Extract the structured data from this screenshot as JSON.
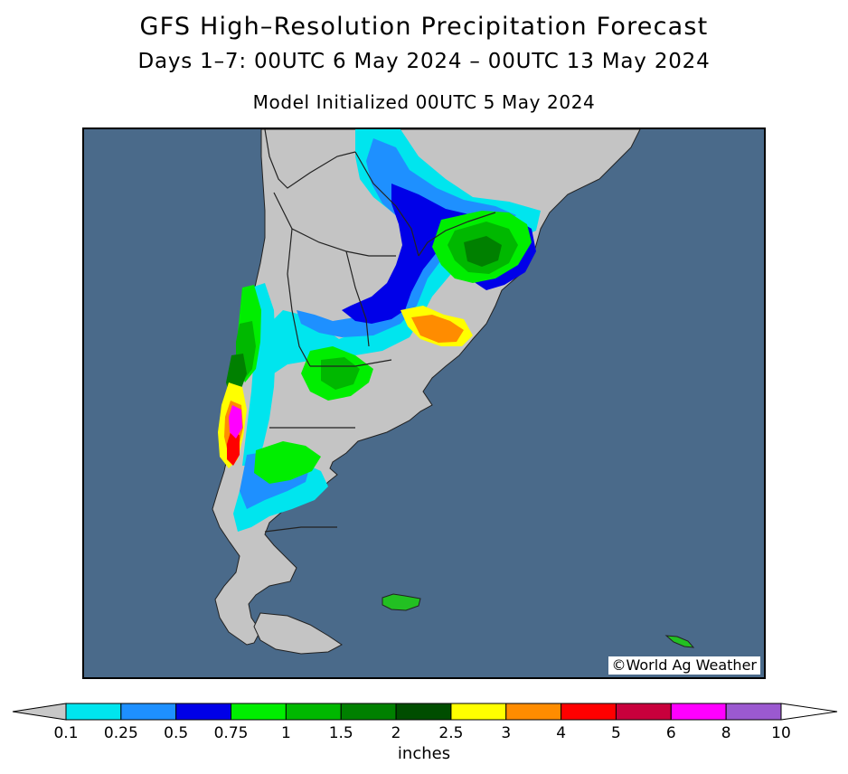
{
  "header": {
    "title": "GFS High–Resolution Precipitation Forecast",
    "subtitle": "Days 1–7: 00UTC 6 May 2024 – 00UTC 13 May 2024",
    "init": "Model Initialized 00UTC 5 May 2024"
  },
  "map": {
    "credit": "©World Ag Weather",
    "colors": {
      "ocean": "#4a6a8a",
      "land_dry": "#c4c4c4",
      "border": "#222222"
    }
  },
  "legend": {
    "unit": "inches",
    "tick_labels": [
      "0.1",
      "0.25",
      "0.5",
      "0.75",
      "1",
      "1.5",
      "2",
      "2.5",
      "3",
      "4",
      "5",
      "6",
      "8",
      "10"
    ],
    "colors": [
      "#00e5ee",
      "#1e90ff",
      "#0000e8",
      "#00ee00",
      "#00b800",
      "#008000",
      "#004d00",
      "#ffff00",
      "#ff8c00",
      "#ff0000",
      "#c8003c",
      "#ff00ff",
      "#9b59d0"
    ],
    "end_colors": {
      "low": "#c8c8c8",
      "high": "#ffffff"
    }
  }
}
